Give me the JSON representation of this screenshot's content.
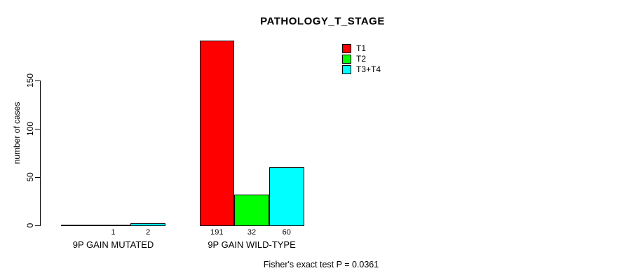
{
  "chart_data": {
    "type": "bar",
    "title": "PATHOLOGY_T_STAGE",
    "ylabel": "number of cases",
    "xlabel": "",
    "ylim": [
      0,
      150
    ],
    "yticks": [
      0,
      50,
      100,
      150
    ],
    "grid": false,
    "legend_position": "top-right",
    "categories": [
      "9P GAIN MUTATED",
      "9P GAIN WILD-TYPE"
    ],
    "series": [
      {
        "name": "T1",
        "color": "#FF0000",
        "values": [
          0,
          191
        ]
      },
      {
        "name": "T2",
        "color": "#00FF00",
        "values": [
          1,
          32
        ]
      },
      {
        "name": "T3+T4",
        "color": "#00FFFF",
        "values": [
          2,
          60
        ]
      }
    ],
    "bar_value_labels": [
      [
        "",
        "1",
        "2"
      ],
      [
        "191",
        "32",
        "60"
      ]
    ],
    "annotation": "Fisher's exact test P = 0.0361"
  }
}
